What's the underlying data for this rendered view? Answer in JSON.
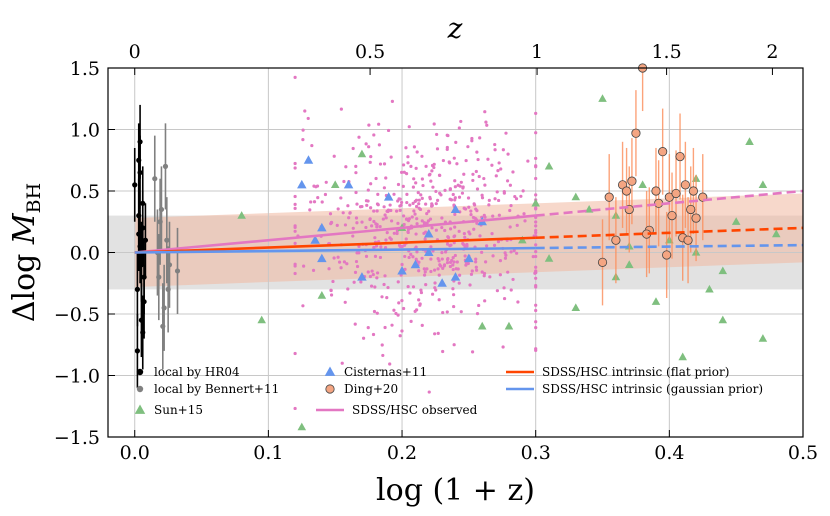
{
  "chart_data": {
    "type": "scatter",
    "xlabel": "log (1 + z)",
    "ylabel": "Δlog M_BH",
    "ylabel_main": "Δlog ",
    "ylabel_sym": "M",
    "ylabel_sub": "BH",
    "top_axis_label": "z",
    "xlim": [
      -0.02,
      0.5
    ],
    "ylim": [
      -1.5,
      1.5
    ],
    "x_ticks": [
      0.0,
      0.1,
      0.2,
      0.3,
      0.4,
      0.5
    ],
    "x_tick_labels": [
      "0.0",
      "0.1",
      "0.2",
      "0.3",
      "0.4",
      "0.5"
    ],
    "y_ticks": [
      -1.5,
      -1.0,
      -0.5,
      0.0,
      0.5,
      1.0,
      1.5
    ],
    "y_tick_labels": [
      "−1.5",
      "−1.0",
      "−0.5",
      "0.0",
      "0.5",
      "1.0",
      "1.5"
    ],
    "top_ticks_z": [
      0,
      0.5,
      1,
      1.5,
      2
    ],
    "top_tick_labels": [
      "0",
      "0.5",
      "1",
      "1.5",
      "2"
    ],
    "grid": true,
    "intrinsic_band_halfwidth": 0.3,
    "colors": {
      "local": "#000000",
      "bennert": "#808080",
      "sun": "#7fbf7f",
      "cisternas": "#6495ed",
      "ding": "#f4a582",
      "ding_edge": "#444444",
      "ding_err": "#fc8d59",
      "observed": "#e377c2",
      "flat": "#ff4500",
      "gauss": "#6495ed",
      "band": "#cfcfcf",
      "flat_band": "#f0b8a0"
    },
    "series": [
      {
        "name": "local by HR04",
        "marker": "circle",
        "x": [
          0.0,
          0.002,
          0.003,
          0.004,
          0.005,
          0.006,
          0.007,
          0.003,
          0.005,
          0.008,
          0.002,
          0.006,
          0.004,
          0.007,
          0.003,
          0.005,
          0.006,
          0.004
        ],
        "y": [
          0.55,
          -0.3,
          0.75,
          0.05,
          -0.1,
          0.2,
          -0.4,
          0.3,
          -0.55,
          0.1,
          -0.8,
          0.4,
          0.65,
          -0.2,
          0.15,
          -0.05,
          -0.65,
          0.9
        ],
        "yerr": [
          0.3,
          0.3,
          0.3,
          0.3,
          0.3,
          0.3,
          0.3,
          0.3,
          0.3,
          0.3,
          0.3,
          0.3,
          0.3,
          0.3,
          0.3,
          0.3,
          0.3,
          0.3
        ]
      },
      {
        "name": "local by Bennert+11",
        "marker": "circle",
        "x": [
          0.015,
          0.018,
          0.02,
          0.022,
          0.024,
          0.026,
          0.019,
          0.021,
          0.023,
          0.017,
          0.025,
          0.032
        ],
        "y": [
          0.6,
          -0.2,
          0.35,
          -0.45,
          0.1,
          -0.1,
          0.25,
          -0.6,
          0.7,
          0.0,
          -0.3,
          -0.15
        ],
        "yerr": [
          0.35,
          0.35,
          0.35,
          0.35,
          0.35,
          0.35,
          0.35,
          0.35,
          0.35,
          0.35,
          0.35,
          0.35
        ]
      },
      {
        "name": "Sun+15",
        "marker": "triangle",
        "x": [
          0.08,
          0.095,
          0.125,
          0.14,
          0.15,
          0.17,
          0.2,
          0.23,
          0.26,
          0.29,
          0.31,
          0.33,
          0.35,
          0.36,
          0.37,
          0.38,
          0.39,
          0.4,
          0.41,
          0.42,
          0.43,
          0.44,
          0.45,
          0.46,
          0.47,
          0.48,
          0.31,
          0.33,
          0.34,
          0.36,
          0.37,
          0.42,
          0.44,
          0.47,
          0.3,
          0.28
        ],
        "y": [
          0.3,
          -0.55,
          -1.42,
          -0.35,
          0.55,
          0.8,
          0.2,
          -0.25,
          -0.6,
          0.1,
          0.7,
          0.45,
          1.25,
          0.3,
          -0.1,
          0.55,
          -0.4,
          0.1,
          -0.85,
          0.6,
          -0.3,
          -0.55,
          0.25,
          0.9,
          0.55,
          0.15,
          -0.05,
          -0.45,
          0.35,
          -0.2,
          0.05,
          0.0,
          -0.15,
          -0.7,
          0.4,
          -0.6
        ],
        "yerr": []
      },
      {
        "name": "Cisternas+11",
        "marker": "triangle",
        "x": [
          0.125,
          0.13,
          0.135,
          0.14,
          0.14,
          0.16,
          0.17,
          0.19,
          0.21,
          0.22,
          0.23,
          0.24,
          0.25,
          0.26,
          0.24,
          0.22,
          0.2
        ],
        "y": [
          0.55,
          0.75,
          0.1,
          -0.05,
          0.2,
          0.55,
          -0.2,
          0.45,
          -0.1,
          0.15,
          -0.25,
          0.35,
          -0.05,
          0.25,
          -0.2,
          0.0,
          -0.15
        ],
        "yerr": []
      },
      {
        "name": "Ding+20",
        "marker": "circle-edge",
        "x": [
          0.35,
          0.355,
          0.36,
          0.365,
          0.368,
          0.372,
          0.375,
          0.38,
          0.385,
          0.39,
          0.392,
          0.395,
          0.4,
          0.402,
          0.405,
          0.408,
          0.41,
          0.412,
          0.414,
          0.416,
          0.418,
          0.42,
          0.425,
          0.37,
          0.383,
          0.398
        ],
        "y": [
          -0.08,
          0.45,
          0.1,
          0.55,
          0.5,
          0.58,
          0.97,
          1.5,
          0.18,
          0.5,
          0.4,
          0.82,
          0.45,
          0.3,
          0.48,
          0.78,
          0.12,
          0.55,
          0.1,
          0.35,
          0.5,
          0.28,
          0.45,
          0.35,
          0.15,
          -0.02
        ],
        "yerr": [
          0.35,
          0.35,
          0.35,
          0.35,
          0.35,
          0.35,
          0.35,
          0.35,
          0.35,
          0.35,
          0.35,
          0.35,
          0.35,
          0.35,
          0.35,
          0.35,
          0.35,
          0.35,
          0.35,
          0.35,
          0.35,
          0.35,
          0.35,
          0.35,
          0.35,
          0.35
        ]
      }
    ],
    "observed_cloud": {
      "n": 620,
      "x_center": 0.22,
      "x_spread": 0.05,
      "y_center": 0.2,
      "y_spread": 0.42,
      "x_min": 0.12,
      "x_max": 0.3
    },
    "lines": [
      {
        "name": "SDSS/HSC observed",
        "slope": 1.0,
        "solid_to": 0.3,
        "dashed_to": 0.5
      },
      {
        "name": "SDSS/HSC intrinsic (flat prior)",
        "slope": 0.4,
        "solid_to": 0.3,
        "dashed_to": 0.5,
        "band_halfwidth": 0.28
      },
      {
        "name": "SDSS/HSC intrinsic (gaussian prior)",
        "slope": 0.12,
        "solid_to": 0.3,
        "dashed_to": 0.5
      }
    ],
    "legend": [
      {
        "label": "local by HR04",
        "kind": "dot-black"
      },
      {
        "label": "local by Bennert+11",
        "kind": "dot-gray"
      },
      {
        "label": "Sun+15",
        "kind": "tri-green"
      },
      {
        "label": "Cisternas+11",
        "kind": "tri-blue"
      },
      {
        "label": "Ding+20",
        "kind": "dot-ding"
      },
      {
        "label": "SDSS/HSC observed",
        "kind": "line-pink"
      },
      {
        "label": "SDSS/HSC intrinsic (flat prior)",
        "kind": "line-orange"
      },
      {
        "label": "SDSS/HSC intrinsic (gaussian prior)",
        "kind": "line-blue"
      }
    ]
  }
}
